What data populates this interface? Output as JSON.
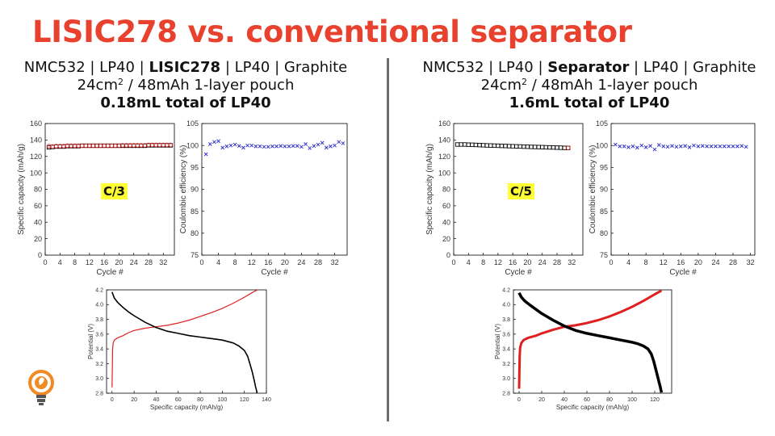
{
  "slide": {
    "title": "LISIC278 vs. conventional separator"
  },
  "panels": [
    {
      "cell": [
        "NMC532 | LP40 | ",
        "LISIC278",
        " | LP40 | Graphite"
      ],
      "format_pre": "24cm",
      "format_sup": "2",
      "format_post": " / 48mAh 1-layer pouch",
      "electrolyte": "0.18mL total of LP40",
      "rate": "C/3"
    },
    {
      "cell": [
        "NMC532 | LP40 | ",
        "Separator",
        " | LP40 | Graphite"
      ],
      "format_pre": "24cm",
      "format_sup": "2",
      "format_post": " / 48mAh 1-layer pouch",
      "electrolyte": "1.6mL total of LP40",
      "rate": "C/5"
    }
  ],
  "colors": {
    "title": "#e8422f",
    "charge": "#e02020",
    "discharge": "#000000",
    "ce": "#3333cc",
    "highlight": "#ffff33",
    "divider": "#6e6e6e"
  },
  "chart_data": [
    {
      "id": "left-capacity",
      "type": "scatter",
      "xlabel": "Cycle #",
      "ylabel": "Specific capacity (mAh/g)",
      "xlim": [
        0,
        35
      ],
      "ylim": [
        0,
        160
      ],
      "xticks": [
        0,
        4,
        8,
        12,
        16,
        20,
        24,
        28,
        32
      ],
      "yticks": [
        0,
        20,
        40,
        60,
        80,
        100,
        120,
        140,
        160
      ],
      "series": [
        {
          "marker": "square",
          "color": "#000000",
          "x": [
            1,
            2,
            3,
            4,
            5,
            6,
            7,
            8,
            9,
            10,
            11,
            12,
            13,
            14,
            15,
            16,
            17,
            18,
            19,
            20,
            21,
            22,
            23,
            24,
            25,
            26,
            27,
            28,
            29,
            30,
            31,
            32,
            33,
            34
          ],
          "y": [
            131,
            131.5,
            132,
            132,
            132,
            132.5,
            132.5,
            132.5,
            132.5,
            133,
            133,
            133,
            133,
            133,
            133,
            133,
            133,
            133,
            133,
            133,
            133,
            133,
            133,
            133,
            133,
            133,
            133,
            133.5,
            133.5,
            133.5,
            133.5,
            133.5,
            133.5,
            133.5
          ]
        },
        {
          "marker": "circle",
          "color": "#e02020",
          "x": [
            1,
            2,
            3,
            4,
            5,
            6,
            7,
            8,
            9,
            10,
            11,
            12,
            13,
            14,
            15,
            16,
            17,
            18,
            19,
            20,
            21,
            22,
            23,
            24,
            25,
            26,
            27,
            28,
            29,
            30,
            31,
            32,
            33,
            34
          ],
          "y": [
            132.5,
            132,
            132.5,
            132.5,
            132.5,
            133,
            133,
            133,
            133,
            133,
            133,
            133,
            133,
            133,
            133,
            133,
            133,
            133,
            133,
            133,
            133.5,
            133.5,
            133.5,
            133.5,
            133.5,
            133.5,
            133.5,
            134,
            134,
            134,
            134,
            134,
            134,
            134
          ]
        }
      ]
    },
    {
      "id": "left-ce",
      "type": "scatter",
      "xlabel": "Cycle #",
      "ylabel": "Coulombic efficiency (%)",
      "xlim": [
        0,
        35
      ],
      "ylim": [
        75,
        105
      ],
      "xticks": [
        0,
        4,
        8,
        12,
        16,
        20,
        24,
        28,
        32
      ],
      "yticks": [
        75,
        80,
        85,
        90,
        95,
        100,
        105
      ],
      "series": [
        {
          "marker": "x",
          "color": "#3333cc",
          "x": [
            1,
            2,
            3,
            4,
            5,
            6,
            7,
            8,
            9,
            10,
            11,
            12,
            13,
            14,
            15,
            16,
            17,
            18,
            19,
            20,
            21,
            22,
            23,
            24,
            25,
            26,
            27,
            28,
            29,
            30,
            31,
            32,
            33,
            34
          ],
          "y": [
            98,
            100.3,
            100.8,
            101,
            99.5,
            99.8,
            100,
            100.2,
            99.9,
            99.5,
            100,
            100,
            99.8,
            99.8,
            99.7,
            99.7,
            99.8,
            99.8,
            99.9,
            99.8,
            99.8,
            99.9,
            99.9,
            99.7,
            100.3,
            99.4,
            99.9,
            100.2,
            100.6,
            99.5,
            99.8,
            100,
            100.8,
            100.5
          ]
        }
      ]
    },
    {
      "id": "right-capacity",
      "type": "scatter",
      "xlabel": "Cycle #",
      "ylabel": "Specific capacity (mAh/g)",
      "xlim": [
        0,
        35
      ],
      "ylim": [
        0,
        160
      ],
      "xticks": [
        0,
        4,
        8,
        12,
        16,
        20,
        24,
        28,
        32
      ],
      "yticks": [
        0,
        20,
        40,
        60,
        80,
        100,
        120,
        140,
        160
      ],
      "series": [
        {
          "marker": "square",
          "color": "#000000",
          "x": [
            1,
            2,
            3,
            4,
            5,
            6,
            7,
            8,
            9,
            10,
            11,
            12,
            13,
            14,
            15,
            16,
            17,
            18,
            19,
            20,
            21,
            22,
            23,
            24,
            25,
            26,
            27,
            28,
            29,
            30,
            31
          ],
          "y": [
            134.5,
            134.5,
            134.5,
            134.3,
            134.2,
            134,
            133.8,
            133.6,
            133.4,
            133.3,
            133.1,
            133,
            132.8,
            132.7,
            132.5,
            132.4,
            132.2,
            132.1,
            131.9,
            131.8,
            131.6,
            131.5,
            131.4,
            131.3,
            131.1,
            131,
            130.9,
            130.7,
            130.6,
            130.4,
            130.3
          ]
        },
        {
          "marker": "circle",
          "color": "#e02020",
          "x": [
            31
          ],
          "y": [
            130.3
          ]
        }
      ]
    },
    {
      "id": "right-ce",
      "type": "scatter",
      "xlabel": "Cycle #",
      "ylabel": "Coulombic efficiency (%)",
      "xlim": [
        0,
        33
      ],
      "ylim": [
        75,
        105
      ],
      "xticks": [
        0,
        4,
        8,
        12,
        16,
        20,
        24,
        28,
        32
      ],
      "yticks": [
        75,
        80,
        85,
        90,
        95,
        100,
        105
      ],
      "series": [
        {
          "marker": "x",
          "color": "#3333cc",
          "x": [
            1,
            2,
            3,
            4,
            5,
            6,
            7,
            8,
            9,
            10,
            11,
            12,
            13,
            14,
            15,
            16,
            17,
            18,
            19,
            20,
            21,
            22,
            23,
            24,
            25,
            26,
            27,
            28,
            29,
            30,
            31
          ],
          "y": [
            100.2,
            99.8,
            99.8,
            99.6,
            99.8,
            99.5,
            100,
            99.6,
            99.9,
            99.1,
            100.1,
            99.8,
            99.7,
            99.9,
            99.7,
            99.8,
            99.9,
            99.6,
            100,
            99.8,
            99.9,
            99.8,
            99.8,
            99.8,
            99.8,
            99.8,
            99.8,
            99.8,
            99.8,
            99.9,
            99.7
          ]
        }
      ]
    },
    {
      "id": "left-voltage",
      "type": "line",
      "xlabel": "Specific capacity (mAh/g)",
      "ylabel": "Potential (V)",
      "xlim": [
        -5,
        140
      ],
      "ylim": [
        2.8,
        4.2
      ],
      "xticks": [
        0,
        20,
        40,
        60,
        80,
        100,
        120,
        140
      ],
      "yticks": [
        2.8,
        3.0,
        3.2,
        3.4,
        3.6,
        3.8,
        4.0,
        4.2
      ],
      "series": [
        {
          "name": "",
          "color": "#e02020",
          "width": 1.2,
          "x": [
            0,
            0.5,
            1,
            2,
            3,
            5,
            10,
            15,
            20,
            30,
            40,
            50,
            60,
            70,
            80,
            90,
            100,
            110,
            120,
            128,
            132
          ],
          "y": [
            2.88,
            3.4,
            3.48,
            3.52,
            3.53,
            3.55,
            3.58,
            3.62,
            3.65,
            3.68,
            3.7,
            3.72,
            3.75,
            3.79,
            3.84,
            3.89,
            3.95,
            4.02,
            4.1,
            4.17,
            4.2
          ]
        },
        {
          "name": "",
          "color": "#000000",
          "width": 1.6,
          "x": [
            0,
            2,
            5,
            10,
            15,
            20,
            30,
            40,
            50,
            60,
            70,
            80,
            90,
            100,
            110,
            115,
            120,
            123,
            125,
            127,
            129,
            130,
            131,
            131.5
          ],
          "y": [
            4.17,
            4.09,
            4.03,
            3.96,
            3.9,
            3.85,
            3.76,
            3.69,
            3.64,
            3.61,
            3.58,
            3.56,
            3.54,
            3.52,
            3.48,
            3.44,
            3.38,
            3.3,
            3.2,
            3.1,
            2.97,
            2.9,
            2.84,
            2.8
          ]
        }
      ]
    },
    {
      "id": "right-voltage",
      "type": "line",
      "xlabel": "Specific capacity (mAh/g)",
      "ylabel": "Potential (V)",
      "xlim": [
        -5,
        135
      ],
      "ylim": [
        2.8,
        4.2
      ],
      "xticks": [
        0,
        20,
        40,
        60,
        80,
        100,
        120
      ],
      "yticks": [
        2.8,
        3.0,
        3.2,
        3.4,
        3.6,
        3.8,
        4.0,
        4.2
      ],
      "series": [
        {
          "name": "",
          "color": "#e02020",
          "width": 3,
          "x": [
            0,
            0.5,
            1,
            2,
            4,
            8,
            15,
            20,
            30,
            40,
            50,
            60,
            70,
            80,
            90,
            100,
            110,
            120,
            126
          ],
          "y": [
            2.86,
            3.3,
            3.42,
            3.48,
            3.52,
            3.55,
            3.58,
            3.61,
            3.66,
            3.7,
            3.72,
            3.75,
            3.79,
            3.84,
            3.9,
            3.97,
            4.05,
            4.14,
            4.19
          ]
        },
        {
          "name": "",
          "color": "#000000",
          "width": 3.5,
          "x": [
            0,
            2,
            5,
            10,
            20,
            30,
            40,
            50,
            60,
            70,
            80,
            90,
            100,
            105,
            110,
            114,
            117,
            119,
            121,
            123,
            125,
            126
          ],
          "y": [
            4.16,
            4.1,
            4.05,
            3.99,
            3.88,
            3.79,
            3.71,
            3.65,
            3.61,
            3.58,
            3.55,
            3.52,
            3.49,
            3.47,
            3.44,
            3.4,
            3.33,
            3.24,
            3.12,
            3.0,
            2.88,
            2.81
          ]
        }
      ]
    }
  ]
}
